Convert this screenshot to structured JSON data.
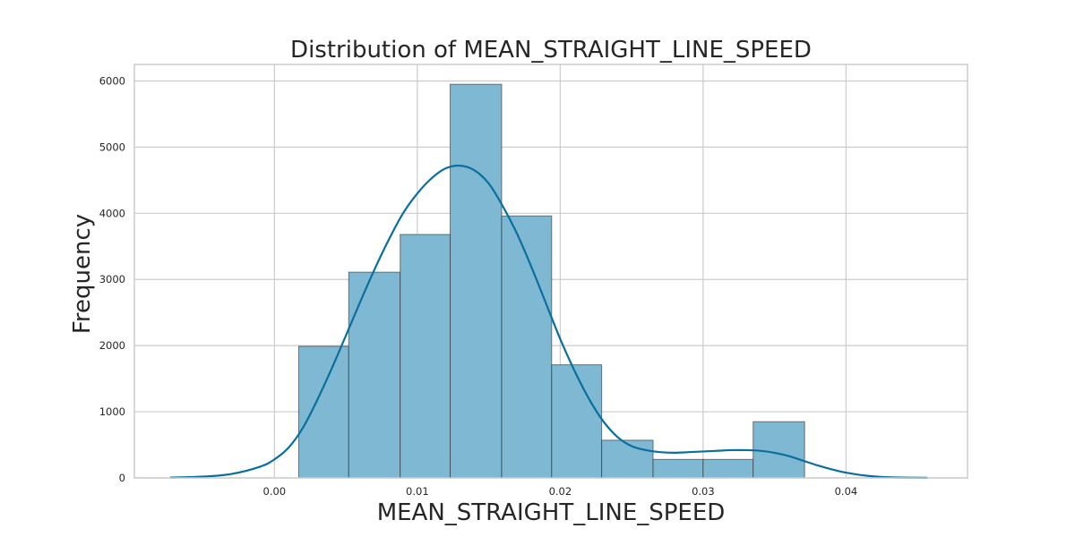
{
  "chart_data": {
    "type": "bar",
    "subtype": "histogram_with_kde",
    "title": "Distribution of MEAN_STRAIGHT_LINE_SPEED",
    "xlabel": "MEAN_STRAIGHT_LINE_SPEED",
    "ylabel": "Frequency",
    "xlim": [
      -0.0098,
      0.0485
    ],
    "ylim": [
      0,
      6250
    ],
    "x_ticks": [
      0.0,
      0.01,
      0.02,
      0.03,
      0.04
    ],
    "x_tick_labels": [
      "0.00",
      "0.01",
      "0.02",
      "0.03",
      "0.04"
    ],
    "y_ticks": [
      0,
      1000,
      2000,
      3000,
      4000,
      5000,
      6000
    ],
    "y_tick_labels": [
      "0",
      "1000",
      "2000",
      "3000",
      "4000",
      "5000",
      "6000"
    ],
    "grid": true,
    "bin_edges": [
      0.0017,
      0.0052,
      0.0088,
      0.0123,
      0.0159,
      0.0194,
      0.0229,
      0.0265,
      0.03,
      0.0335,
      0.0371
    ],
    "counts": [
      1990,
      3110,
      3680,
      5950,
      3960,
      1710,
      570,
      280,
      280,
      850
    ],
    "kde": {
      "x": [
        -0.0073,
        -0.005,
        -0.003,
        -0.001,
        0.0,
        0.001,
        0.002,
        0.003,
        0.004,
        0.005,
        0.006,
        0.007,
        0.008,
        0.009,
        0.01,
        0.011,
        0.012,
        0.013,
        0.014,
        0.015,
        0.016,
        0.017,
        0.018,
        0.019,
        0.02,
        0.021,
        0.022,
        0.023,
        0.024,
        0.025,
        0.026,
        0.027,
        0.028,
        0.029,
        0.03,
        0.031,
        0.032,
        0.033,
        0.034,
        0.035,
        0.036,
        0.037,
        0.038,
        0.039,
        0.04,
        0.041,
        0.042,
        0.043,
        0.044,
        0.0457
      ],
      "y": [
        5,
        20,
        60,
        170,
        280,
        460,
        760,
        1180,
        1650,
        2150,
        2660,
        3150,
        3600,
        4000,
        4300,
        4530,
        4680,
        4720,
        4650,
        4450,
        4100,
        3680,
        3180,
        2640,
        2100,
        1620,
        1200,
        860,
        620,
        480,
        420,
        390,
        380,
        390,
        400,
        410,
        420,
        420,
        410,
        380,
        330,
        260,
        190,
        130,
        80,
        45,
        22,
        10,
        5,
        2
      ]
    },
    "colors": {
      "bar_fill": "#7fb8d2",
      "kde_line": "#0a6f9d"
    }
  }
}
